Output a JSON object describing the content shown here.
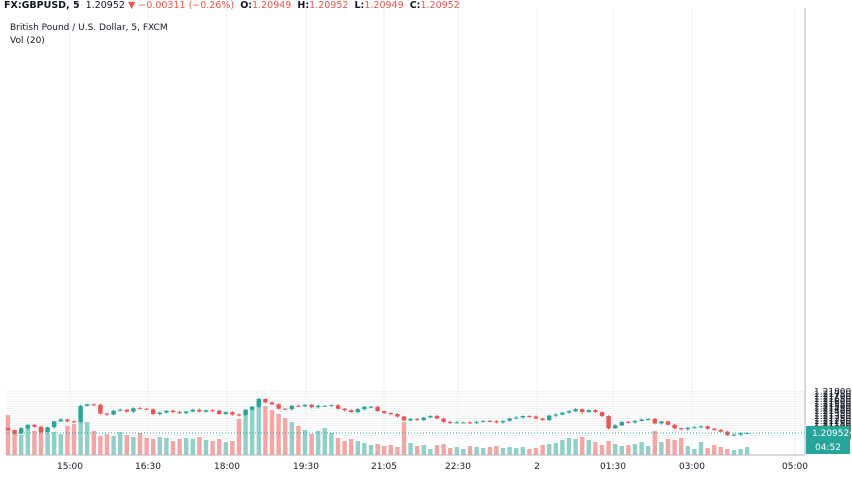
{
  "header": {
    "symbol": "FX:GBPUSD, 5",
    "last": "1.20952",
    "arrow": "▼",
    "change": "−0.00311 (−0.26%)",
    "o_label": "O:",
    "o_val": "1.20949",
    "h_label": "H:",
    "h_val": "1.20952",
    "l_label": "L:",
    "l_val": "1.20949",
    "c_label": "C:",
    "c_val": "1.20952"
  },
  "subtitle": "British Pound / U.S. Dollar, 5, FXCM",
  "volume_label": "Vol (20)",
  "colors": {
    "up": "#26a69a",
    "down": "#ef5350",
    "up_vol": "#8fd1c9",
    "down_vol": "#f5a5a3",
    "grid": "#eef0f3",
    "axis": "#b2b5be",
    "last_line": "#26a69a"
  },
  "chart_data": {
    "type": "candlestick",
    "title": "British Pound / U.S. Dollar, 5, FXCM",
    "ylim": [
      1.2083,
      1.2183
    ],
    "y_ticks": [
      "1.21800",
      "1.21750",
      "1.21700",
      "1.21650",
      "1.21600",
      "1.21550",
      "1.21500",
      "1.21450",
      "1.21400",
      "1.21350",
      "1.21300",
      "1.21250",
      "1.21200",
      "1.21150",
      "1.21100",
      "1.21050",
      "1.21000",
      "1.20900",
      "1.20850"
    ],
    "x_ticks": [
      "15:00",
      "16:30",
      "18:00",
      "19:30",
      "21:05",
      "22:30",
      "2",
      "01:30",
      "03:00",
      "05:00"
    ],
    "last_price_label": "1.20952",
    "countdown_label": "04:52",
    "closes": [
      1.2101,
      1.2094,
      1.2105,
      1.2112,
      1.2108,
      1.2097,
      1.2107,
      1.2119,
      1.2123,
      1.2119,
      1.2118,
      1.2151,
      1.2154,
      1.2153,
      1.2135,
      1.2133,
      1.2141,
      1.2143,
      1.2139,
      1.2146,
      1.2145,
      1.2144,
      1.2134,
      1.2137,
      1.2141,
      1.2138,
      1.2136,
      1.2139,
      1.2143,
      1.2139,
      1.2142,
      1.2141,
      1.2134,
      1.2138,
      1.2133,
      1.2132,
      1.2143,
      1.2149,
      1.2165,
      1.2158,
      1.2154,
      1.2145,
      1.2144,
      1.2151,
      1.215,
      1.2153,
      1.2148,
      1.2151,
      1.2151,
      1.2152,
      1.2145,
      1.2142,
      1.2138,
      1.2144,
      1.2149,
      1.2149,
      1.214,
      1.2136,
      1.2134,
      1.2129,
      1.2121,
      1.2124,
      1.2122,
      1.2127,
      1.213,
      1.2125,
      1.2118,
      1.2116,
      1.2117,
      1.2117,
      1.2116,
      1.2118,
      1.212,
      1.2119,
      1.2117,
      1.212,
      1.2125,
      1.2127,
      1.213,
      1.2129,
      1.2125,
      1.2122,
      1.2131,
      1.2133,
      1.2137,
      1.214,
      1.2144,
      1.2138,
      1.2142,
      1.2138,
      1.213,
      1.2105,
      1.2111,
      1.2118,
      1.2117,
      1.212,
      1.2123,
      1.2124,
      1.2115,
      1.2119,
      1.2112,
      1.2105,
      1.2103,
      1.2106,
      1.2107,
      1.2109,
      1.2104,
      1.2102,
      1.2098,
      1.2091,
      1.2092,
      1.2095,
      1.20952
    ],
    "volumes": [
      40,
      25,
      20,
      30,
      24,
      26,
      22,
      23,
      21,
      29,
      31,
      34,
      33,
      24,
      19,
      21,
      19,
      23,
      20,
      18,
      22,
      17,
      16,
      18,
      17,
      14,
      16,
      17,
      16,
      18,
      15,
      14,
      16,
      13,
      14,
      36,
      41,
      46,
      53,
      49,
      45,
      41,
      37,
      33,
      29,
      25,
      21,
      24,
      27,
      22,
      17,
      14,
      16,
      14,
      12,
      10,
      11,
      9,
      10,
      8,
      33,
      12,
      9,
      10,
      6,
      10,
      11,
      7,
      8,
      6,
      9,
      8,
      7,
      8,
      9,
      7,
      8,
      7,
      8,
      6,
      7,
      10,
      11,
      12,
      15,
      17,
      16,
      18,
      15,
      13,
      10,
      14,
      11,
      9,
      10,
      11,
      13,
      9,
      24,
      13,
      16,
      15,
      17,
      9,
      6,
      13,
      7,
      10,
      8,
      6,
      5,
      6,
      8
    ]
  }
}
